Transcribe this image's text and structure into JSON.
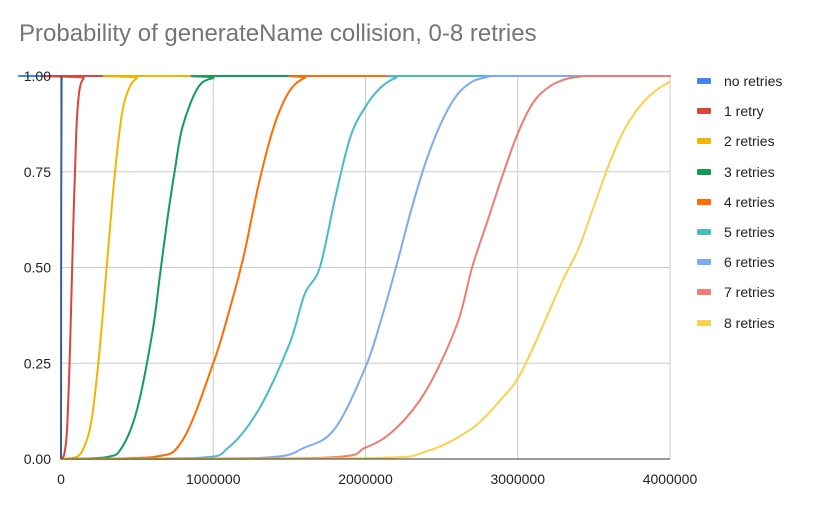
{
  "chart_data": {
    "type": "line",
    "title": "Probability of generateName collision, 0-8 retries",
    "xlim": [
      0,
      4000000
    ],
    "ylim": [
      0,
      1
    ],
    "x_ticks": [
      {
        "value": 0,
        "label": "0"
      },
      {
        "value": 1000000,
        "label": "1000000"
      },
      {
        "value": 2000000,
        "label": "2000000"
      },
      {
        "value": 3000000,
        "label": "3000000"
      },
      {
        "value": 4000000,
        "label": "4000000"
      }
    ],
    "y_ticks": [
      {
        "value": 0,
        "label": "0.00"
      },
      {
        "value": 0.25,
        "label": "0.25"
      },
      {
        "value": 0.5,
        "label": "0.50"
      },
      {
        "value": 0.75,
        "label": "0.75"
      },
      {
        "value": 1,
        "label": "1.00"
      }
    ],
    "grid": true,
    "legend_position": "right",
    "series": [
      {
        "name": "no retries",
        "color": "#4285F4",
        "x": [
          0,
          2000,
          5000,
          8000,
          12000,
          20000,
          4000000
        ],
        "y": [
          0.0,
          0.7,
          0.99,
          1.0,
          1.0,
          1.0,
          1.0
        ]
      },
      {
        "name": "1 retry",
        "color": "#DB4437",
        "x": [
          0,
          20000,
          40000,
          60000,
          80000,
          100000,
          120000,
          150000,
          180000,
          4000000
        ],
        "y": [
          0.0,
          0.01,
          0.08,
          0.3,
          0.6,
          0.85,
          0.96,
          0.995,
          1.0,
          1.0
        ]
      },
      {
        "name": "2 retries",
        "color": "#F4B400",
        "x": [
          0,
          100000,
          150000,
          200000,
          250000,
          300000,
          350000,
          400000,
          450000,
          500000,
          550000,
          4000000
        ],
        "y": [
          0.0,
          0.005,
          0.03,
          0.1,
          0.27,
          0.5,
          0.73,
          0.9,
          0.97,
          0.995,
          1.0,
          1.0
        ]
      },
      {
        "name": "3 retries",
        "color": "#0F9D58",
        "x": [
          0,
          300000,
          400000,
          500000,
          600000,
          650000,
          700000,
          750000,
          800000,
          900000,
          1000000,
          1100000,
          4000000
        ],
        "y": [
          0.0,
          0.005,
          0.03,
          0.13,
          0.33,
          0.48,
          0.63,
          0.76,
          0.87,
          0.97,
          0.995,
          1.0,
          1.0
        ]
      },
      {
        "name": "4 retries",
        "color": "#FF6D00",
        "x": [
          0,
          600000,
          800000,
          1000000,
          1100000,
          1200000,
          1300000,
          1400000,
          1500000,
          1600000,
          1700000,
          4000000
        ],
        "y": [
          0.0,
          0.005,
          0.05,
          0.25,
          0.38,
          0.53,
          0.72,
          0.87,
          0.96,
          0.995,
          1.0,
          1.0
        ]
      },
      {
        "name": "5 retries",
        "color": "#46BDC6",
        "x": [
          0,
          900000,
          1100000,
          1300000,
          1500000,
          1600000,
          1700000,
          1800000,
          1900000,
          2000000,
          2100000,
          2200000,
          2300000,
          4000000
        ],
        "y": [
          0.0,
          0.003,
          0.03,
          0.13,
          0.3,
          0.43,
          0.5,
          0.68,
          0.84,
          0.92,
          0.97,
          0.995,
          1.0,
          1.0
        ]
      },
      {
        "name": "6 retries",
        "color": "#7BAAF7",
        "x": [
          0,
          1300000,
          1600000,
          1800000,
          2000000,
          2100000,
          2200000,
          2300000,
          2400000,
          2500000,
          2600000,
          2700000,
          2800000,
          2900000,
          4000000
        ],
        "y": [
          0.0,
          0.003,
          0.03,
          0.08,
          0.24,
          0.36,
          0.5,
          0.65,
          0.78,
          0.88,
          0.95,
          0.985,
          0.997,
          1.0,
          1.0
        ]
      },
      {
        "name": "7 retries",
        "color": "#F07B72",
        "x": [
          0,
          1700000,
          2000000,
          2200000,
          2400000,
          2600000,
          2700000,
          2800000,
          2900000,
          3000000,
          3100000,
          3200000,
          3300000,
          3400000,
          3500000,
          4000000
        ],
        "y": [
          0.0,
          0.003,
          0.03,
          0.08,
          0.18,
          0.35,
          0.5,
          0.62,
          0.74,
          0.85,
          0.93,
          0.97,
          0.99,
          0.998,
          1.0,
          1.0
        ]
      },
      {
        "name": "8 retries",
        "color": "#FCD04F",
        "x": [
          0,
          2000000,
          2400000,
          2700000,
          2900000,
          3000000,
          3100000,
          3200000,
          3300000,
          3400000,
          3500000,
          3600000,
          3700000,
          3800000,
          3900000,
          4000000
        ],
        "y": [
          0.0,
          0.002,
          0.02,
          0.08,
          0.16,
          0.21,
          0.29,
          0.38,
          0.47,
          0.55,
          0.66,
          0.77,
          0.86,
          0.92,
          0.96,
          0.985
        ]
      }
    ]
  }
}
